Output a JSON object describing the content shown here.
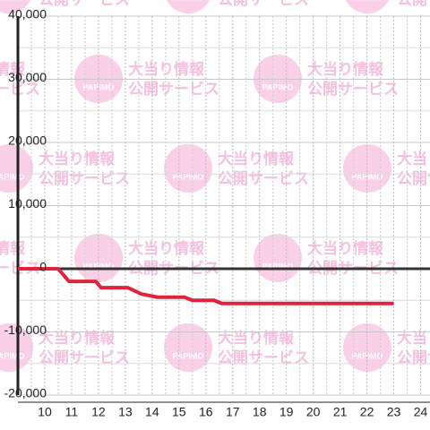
{
  "watermark": {
    "line1": "大当り情報",
    "line2": "公開サービス",
    "logo": "PAPIMO"
  },
  "chart_data": {
    "type": "line",
    "x": [
      9,
      10.5,
      10.9,
      11.9,
      12.1,
      13.1,
      13.6,
      14.2,
      15.2,
      15.5,
      16.3,
      16.6,
      23
    ],
    "series": [
      {
        "color": "#e0223a",
        "values": [
          0,
          0,
          -2000,
          -2000,
          -3000,
          -3000,
          -4000,
          -4500,
          -4500,
          -5000,
          -5000,
          -5500,
          -5500
        ]
      }
    ],
    "xlim": [
      9,
      24.35
    ],
    "xticks": [
      10,
      11,
      12,
      13,
      14,
      15,
      16,
      17,
      18,
      19,
      20,
      21,
      22,
      23,
      24
    ],
    "ylim": [
      -20000,
      40000
    ],
    "yticks": [
      {
        "value": -20000,
        "label": "-20,000"
      },
      {
        "value": -10000,
        "label": "-10,000"
      },
      0,
      {
        "value": 10000,
        "label": "10,000"
      },
      {
        "value": 20000,
        "label": "20,000"
      },
      {
        "value": 30000,
        "label": "30,000"
      },
      {
        "value": 40000,
        "label": "40,000"
      }
    ],
    "grid": true
  }
}
